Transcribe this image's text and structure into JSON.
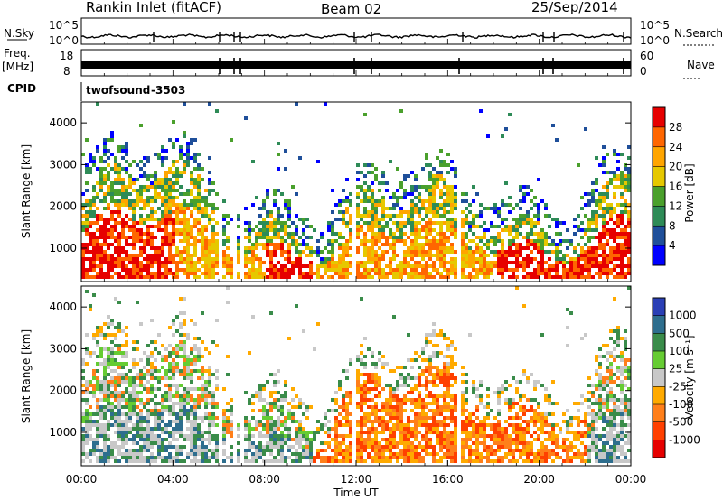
{
  "header": {
    "title": "Rankin Inlet (fitACF)",
    "beam": "Beam 02",
    "date": "25/Sep/2014"
  },
  "panels": {
    "nsky": {
      "label": "N.Sky",
      "ticks": [
        "10^5",
        "10^0"
      ],
      "right_label": "N.Search",
      "right_ticks": [
        "10^5",
        "10^0"
      ]
    },
    "freq": {
      "label_top": "Freq.",
      "label_unit": "[MHz]",
      "ticks": [
        "18",
        "8"
      ],
      "right_label": "Nave",
      "right_ticks": [
        "60",
        "0"
      ]
    },
    "cpid": {
      "label": "CPID",
      "value": "twofsound",
      "id": "-3503"
    }
  },
  "chart_data": [
    {
      "type": "heatmap",
      "name": "power",
      "ylabel": "Slant Range [km]",
      "ylim": [
        200,
        4500
      ],
      "yticks": [
        1000,
        2000,
        3000,
        4000
      ],
      "colorbar_label": "Power [dB]",
      "colorbar_ticks": [
        "28",
        "24",
        "20",
        "16",
        "12",
        "8",
        "4"
      ],
      "colors": [
        "#e60000",
        "#ff6600",
        "#ffa500",
        "#e6c800",
        "#4aa02c",
        "#2e8b57",
        "#1f4f9a",
        "#0000ff"
      ]
    },
    {
      "type": "heatmap",
      "name": "velocity",
      "ylabel": "Slant Range [km]",
      "ylim": [
        200,
        4500
      ],
      "yticks": [
        1000,
        2000,
        3000,
        4000
      ],
      "xlabel": "Time UT",
      "xticks": [
        "00:00",
        "04:00",
        "08:00",
        "12:00",
        "16:00",
        "20:00",
        "00:00"
      ],
      "colorbar_label": "Velocity [m s⁻¹]",
      "colorbar_ticks": [
        "1000",
        "500",
        "100",
        "25",
        "-25",
        "-100",
        "-500",
        "-1000"
      ],
      "colors": [
        "#2a3fb5",
        "#2e6e8e",
        "#3a8c4a",
        "#66cc33",
        "#c8c8c8",
        "#ffaa00",
        "#ff7f1a",
        "#ff4000",
        "#e60000"
      ]
    }
  ]
}
